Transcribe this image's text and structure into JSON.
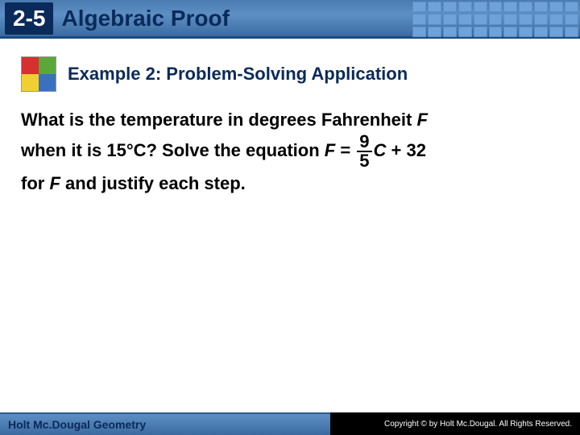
{
  "header": {
    "section_number": "2-5",
    "title": "Algebraic Proof",
    "badge_bg": "#0a2a5a",
    "badge_color": "#ffffff",
    "title_color": "#0a2a5a",
    "bar_gradient_top": "#4a7ab0",
    "bar_gradient_bottom": "#3a6aa0",
    "grid_cell_color": "#6ea2d8"
  },
  "example": {
    "label": "Example 2: Problem-Solving Application",
    "label_color": "#0a2a5a",
    "label_fontsize": 22,
    "icon_colors": [
      "#d63030",
      "#5aa83a",
      "#f0d030",
      "#3a70c0"
    ]
  },
  "problem": {
    "line1_a": "What is the temperature in degrees Fahrenheit ",
    "line1_var": "F",
    "line2_a": "when it is 15°C? Solve the equation ",
    "line2_eq_lhs": "F",
    "line2_eq_eq": " = ",
    "frac_num": "9",
    "frac_den": "5",
    "line2_eq_rhs_var": "C",
    "line2_eq_tail": " + 32",
    "line3_a": "for ",
    "line3_var": "F",
    "line3_b": " and justify each step.",
    "fontsize": 22,
    "color": "#000000"
  },
  "footer": {
    "left_text": "Holt Mc.Dougal Geometry",
    "right_text": "Copyright © by Holt Mc.Dougal. All Rights Reserved.",
    "left_bg_top": "#5d8fc5",
    "left_bg_bottom": "#3a6aa0",
    "right_bg": "#000000"
  }
}
